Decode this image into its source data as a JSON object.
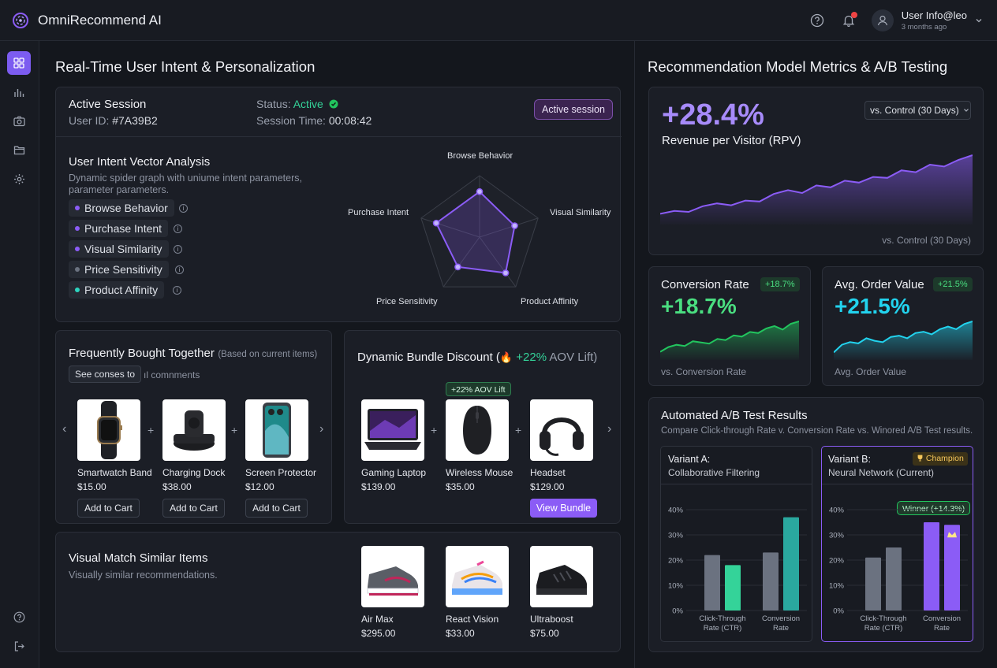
{
  "app": {
    "name": "OmniRecommend AI"
  },
  "topbar": {
    "user_name": "User Info@leo",
    "user_sub": "3 months ago"
  },
  "left": {
    "heading": "Real-Time User Intent & Personalization",
    "session": {
      "title": "Active Session",
      "user_id_label": "User ID:",
      "user_id": "#7A39B2",
      "status_label": "Status:",
      "status_value": "Active",
      "time_label": "Session Time:",
      "time_value": "00:08:42",
      "badge": "Active session"
    },
    "intent": {
      "title": "User Intent Vector Analysis",
      "desc": "Dynamic spider graph with uniume intent parameters, parameter parameters.",
      "chips": [
        {
          "label": "Browse Behavior",
          "color": "#8b5cf6"
        },
        {
          "label": "Purchase Intent",
          "color": "#8b5cf6"
        },
        {
          "label": "Visual Similarity",
          "color": "#8b5cf6"
        },
        {
          "label": "Price Sensitivity",
          "color": "#6b7280"
        },
        {
          "label": "Product Affinity",
          "color": "#2dd4bf"
        }
      ],
      "info_glyph": "i"
    },
    "fbt": {
      "title": "Frequently Bought Together",
      "subtitle": "(Based on current items)",
      "see_button": "See conses to",
      "comments": "ıl comnments",
      "items": [
        {
          "name": "Smartwatch Band",
          "price": "$15.00",
          "action": "Add to Cart"
        },
        {
          "name": "Charging Dock",
          "price": "$38.00",
          "action": "Add to Cart"
        },
        {
          "name": "Screen Protector",
          "price": "$12.00",
          "action": "Add to Cart"
        }
      ]
    },
    "bundle": {
      "title": "Dynamic Bundle Discount (",
      "lift": "+22%",
      "lift_suffix": " AOV Lift)",
      "tag": "+22% AOV Lift",
      "cta": "View Bundle",
      "items": [
        {
          "name": "Gaming Laptop",
          "price": "$139.00"
        },
        {
          "name": "Wireless Mouse",
          "price": "$35.00"
        },
        {
          "name": "Headset",
          "price": "$129.00"
        }
      ]
    },
    "visual": {
      "title": "Visual Match Similar Items",
      "desc": "Visually similar recommendations.",
      "items": [
        {
          "name": "Air Max",
          "price": "$295.00"
        },
        {
          "name": "React Vision",
          "price": "$33.00"
        },
        {
          "name": "Ultraboost",
          "price": "$75.00"
        }
      ]
    },
    "glyphs": {
      "plus": "+",
      "prev": "‹",
      "next": "›",
      "fire": "🔥"
    }
  },
  "radar": {
    "axes": [
      "Browse Behavior",
      "Visual Similarity",
      "Product Affinity",
      "Price Sensitivity",
      "Purchase Intent"
    ],
    "values": [
      0.74,
      0.6,
      0.72,
      0.6,
      0.74
    ],
    "color": "#8b5cf6"
  },
  "right": {
    "heading": "Recommendation Model Metrics & A/B Testing",
    "rpv": {
      "value": "+28.4%",
      "label": "Revenue per Visitor (RPV)",
      "select": "vs. Control (30 Days)",
      "footnote": "vs. Control (30 Days)"
    },
    "conversion": {
      "title": "Conversion Rate",
      "badge": "+18.7%",
      "value": "+18.7%",
      "footnote": "vs. Conversion Rate"
    },
    "aov": {
      "title": "Avg. Order Value",
      "badge": "+21.5%",
      "value": "+21.5%",
      "footnote": "Avg. Order Value"
    },
    "ab": {
      "title": "Automated A/B Test Results",
      "desc": "Compare Click-through Rate v. Conversion Rate vs. Winored A/B Test results.",
      "variant_a": {
        "title": "Variant A:",
        "sub": "Collaborative Filtering"
      },
      "variant_b": {
        "title": "Variant B:",
        "sub": "Neural Network (Current)",
        "badge": "Champion",
        "winner": "Winner (+14.3%)"
      },
      "ticks": [
        "40%",
        "30%",
        "20%",
        "10%",
        "0%"
      ],
      "cat_ctr": "Click-Through Rate (CTR)",
      "cat_conv": "Conversion Rate"
    }
  },
  "chart_data": [
    {
      "type": "bar",
      "title": "Variant A: Collaborative Filtering",
      "categories": [
        "Click-Through Rate (CTR)",
        "Conversion Rate"
      ],
      "series": [
        {
          "values": [
            22,
            23
          ]
        },
        {
          "values": [
            18,
            37
          ]
        }
      ],
      "ylim": [
        0,
        40
      ],
      "colors": [
        [
          "#6b7280",
          "#6b7280"
        ],
        [
          "#34d399",
          "#2aa89f"
        ]
      ]
    },
    {
      "type": "bar",
      "title": "Variant B: Neural Network (Current)",
      "categories": [
        "Click-Through Rate (CTR)",
        "Conversion Rate"
      ],
      "series": [
        {
          "values": [
            21,
            35
          ]
        },
        {
          "values": [
            25,
            34
          ]
        }
      ],
      "ylim": [
        0,
        40
      ],
      "colors": [
        [
          "#6b7280",
          "#8b5cf6"
        ],
        [
          "#6b7280",
          "#8b5cf6"
        ]
      ]
    },
    {
      "type": "area",
      "title": "Revenue per Visitor (RPV)",
      "values": [
        8,
        11,
        10,
        16,
        19,
        17,
        22,
        21,
        29,
        33,
        30,
        38,
        36,
        43,
        41,
        47,
        46,
        54,
        52,
        60,
        58,
        65,
        70
      ],
      "color": "#8b5cf6"
    },
    {
      "type": "area",
      "title": "Conversion Rate",
      "values": [
        5,
        9,
        11,
        10,
        14,
        13,
        12,
        16,
        15,
        19,
        18,
        22,
        21,
        25,
        27,
        24,
        29,
        31
      ],
      "color": "#22c55e"
    },
    {
      "type": "area",
      "title": "Avg. Order Value",
      "values": [
        4,
        10,
        12,
        11,
        15,
        13,
        12,
        16,
        17,
        15,
        19,
        20,
        18,
        22,
        24,
        22,
        26,
        28
      ],
      "color": "#22d3ee"
    }
  ]
}
